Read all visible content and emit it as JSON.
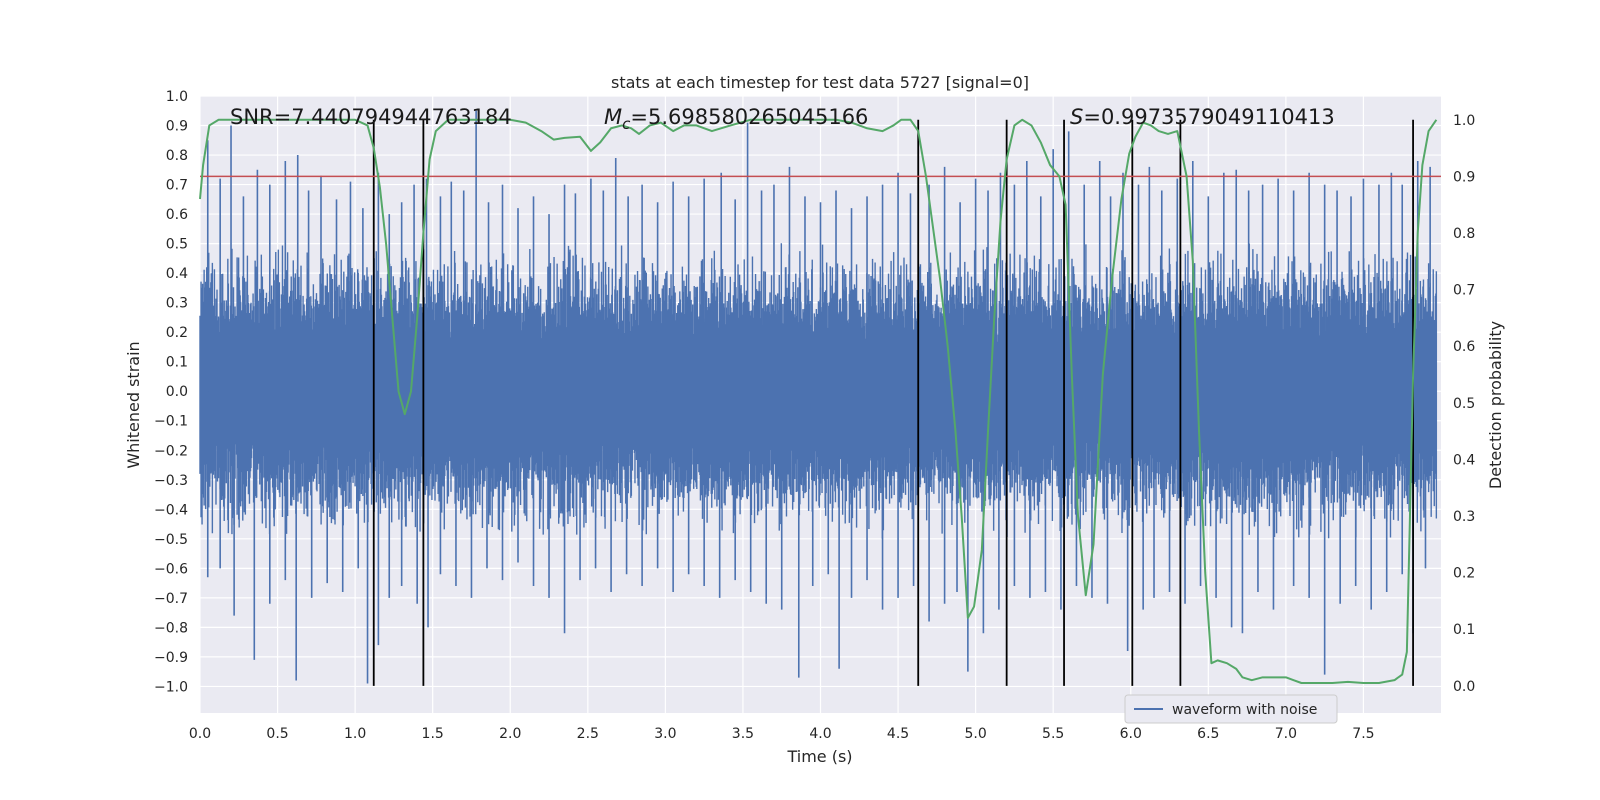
{
  "chart_data": {
    "type": "line",
    "title": "stats at each timestep for test data 5727 [signal=0]",
    "xlabel": "Time (s)",
    "ylabel": "Whitened strain",
    "y2label": "Detection probability",
    "xlim": [
      0.0,
      8.0
    ],
    "ylim": [
      -1.09,
      1.0
    ],
    "y2lim": [
      -0.048,
      1.042
    ],
    "xticks": [
      "0.0",
      "0.5",
      "1.0",
      "1.5",
      "2.0",
      "2.5",
      "3.0",
      "3.5",
      "4.0",
      "4.5",
      "5.0",
      "5.5",
      "6.0",
      "6.5",
      "7.0",
      "7.5"
    ],
    "yticks": [
      "1.0",
      "0.9",
      "0.8",
      "0.7",
      "0.6",
      "0.5",
      "0.4",
      "0.3",
      "0.2",
      "0.1",
      "0.0",
      "−0.1",
      "−0.2",
      "−0.3",
      "−0.4",
      "−0.5",
      "−0.6",
      "−0.7",
      "−0.8",
      "−0.9",
      "−1.0"
    ],
    "y2ticks": [
      "1.0",
      "0.9",
      "0.8",
      "0.7",
      "0.6",
      "0.5",
      "0.4",
      "0.3",
      "0.2",
      "0.1",
      "0.0"
    ],
    "annotations": {
      "snr": "SNR=7.440794944763184",
      "mc_symbol": "M",
      "mc_sub": "c",
      "mc_value": "=5.698580265045166",
      "s_symbol": "S",
      "s_value": "=0.9973579049110413"
    },
    "threshold": 0.9,
    "vertical_lines": [
      1.12,
      1.44,
      4.63,
      5.2,
      5.57,
      6.01,
      6.32,
      7.82
    ],
    "series": [
      {
        "name": "waveform with noise",
        "color": "#4c72b0",
        "core_amplitude": 0.35,
        "peaks_high": [
          [
            0.05,
            0.85
          ],
          [
            0.13,
            0.72
          ],
          [
            0.2,
            0.9
          ],
          [
            0.28,
            0.66
          ],
          [
            0.37,
            0.75
          ],
          [
            0.45,
            0.7
          ],
          [
            0.55,
            0.78
          ],
          [
            0.63,
            0.8
          ],
          [
            0.7,
            0.68
          ],
          [
            0.78,
            0.73
          ],
          [
            0.88,
            0.65
          ],
          [
            0.97,
            0.71
          ],
          [
            1.05,
            0.62
          ],
          [
            1.15,
            0.74
          ],
          [
            1.22,
            0.6
          ],
          [
            1.3,
            0.64
          ],
          [
            1.38,
            0.7
          ],
          [
            1.46,
            0.72
          ],
          [
            1.55,
            0.66
          ],
          [
            1.62,
            0.71
          ],
          [
            1.7,
            0.68
          ],
          [
            1.78,
            0.95
          ],
          [
            1.86,
            0.64
          ],
          [
            1.95,
            0.7
          ],
          [
            2.05,
            0.62
          ],
          [
            2.15,
            0.66
          ],
          [
            2.25,
            0.6
          ],
          [
            2.35,
            0.7
          ],
          [
            2.42,
            0.67
          ],
          [
            2.52,
            0.72
          ],
          [
            2.6,
            0.68
          ],
          [
            2.68,
            0.79
          ],
          [
            2.76,
            0.66
          ],
          [
            2.85,
            0.7
          ],
          [
            2.95,
            0.64
          ],
          [
            3.05,
            0.71
          ],
          [
            3.15,
            0.66
          ],
          [
            3.25,
            0.72
          ],
          [
            3.36,
            0.74
          ],
          [
            3.45,
            0.65
          ],
          [
            3.53,
            0.91
          ],
          [
            3.62,
            0.68
          ],
          [
            3.7,
            0.7
          ],
          [
            3.8,
            0.76
          ],
          [
            3.9,
            0.66
          ],
          [
            4.0,
            0.64
          ],
          [
            4.1,
            0.68
          ],
          [
            4.2,
            0.62
          ],
          [
            4.3,
            0.66
          ],
          [
            4.4,
            0.7
          ],
          [
            4.5,
            0.74
          ],
          [
            4.58,
            0.67
          ],
          [
            4.7,
            0.7
          ],
          [
            4.8,
            0.76
          ],
          [
            4.9,
            0.64
          ],
          [
            5.0,
            0.72
          ],
          [
            5.08,
            0.68
          ],
          [
            5.16,
            0.74
          ],
          [
            5.25,
            0.7
          ],
          [
            5.33,
            0.78
          ],
          [
            5.42,
            0.66
          ],
          [
            5.5,
            0.82
          ],
          [
            5.6,
            0.88
          ],
          [
            5.7,
            0.7
          ],
          [
            5.8,
            0.78
          ],
          [
            5.87,
            0.66
          ],
          [
            5.95,
            0.74
          ],
          [
            6.05,
            0.7
          ],
          [
            6.12,
            0.76
          ],
          [
            6.2,
            0.68
          ],
          [
            6.3,
            0.72
          ],
          [
            6.4,
            0.78
          ],
          [
            6.5,
            0.66
          ],
          [
            6.6,
            0.74
          ],
          [
            6.68,
            0.75
          ],
          [
            6.76,
            0.68
          ],
          [
            6.85,
            0.7
          ],
          [
            6.95,
            0.72
          ],
          [
            7.05,
            0.68
          ],
          [
            7.15,
            0.74
          ],
          [
            7.25,
            0.7
          ],
          [
            7.33,
            0.68
          ],
          [
            7.42,
            0.66
          ],
          [
            7.5,
            0.72
          ],
          [
            7.6,
            0.7
          ],
          [
            7.68,
            0.74
          ],
          [
            7.75,
            0.7
          ],
          [
            7.85,
            0.78
          ],
          [
            7.93,
            0.76
          ]
        ],
        "peaks_low": [
          [
            0.05,
            -0.63
          ],
          [
            0.13,
            -0.6
          ],
          [
            0.22,
            -0.76
          ],
          [
            0.35,
            -0.91
          ],
          [
            0.45,
            -0.72
          ],
          [
            0.55,
            -0.64
          ],
          [
            0.62,
            -0.98
          ],
          [
            0.72,
            -0.7
          ],
          [
            0.82,
            -0.65
          ],
          [
            0.92,
            -0.68
          ],
          [
            1.02,
            -0.6
          ],
          [
            1.08,
            -0.99
          ],
          [
            1.15,
            -0.86
          ],
          [
            1.22,
            -0.7
          ],
          [
            1.3,
            -0.66
          ],
          [
            1.4,
            -0.72
          ],
          [
            1.47,
            -0.8
          ],
          [
            1.55,
            -0.62
          ],
          [
            1.65,
            -0.66
          ],
          [
            1.75,
            -0.7
          ],
          [
            1.85,
            -0.6
          ],
          [
            1.95,
            -0.64
          ],
          [
            2.05,
            -0.58
          ],
          [
            2.15,
            -0.66
          ],
          [
            2.25,
            -0.7
          ],
          [
            2.35,
            -0.82
          ],
          [
            2.45,
            -0.64
          ],
          [
            2.55,
            -0.6
          ],
          [
            2.65,
            -0.68
          ],
          [
            2.75,
            -0.62
          ],
          [
            2.85,
            -0.66
          ],
          [
            2.95,
            -0.6
          ],
          [
            3.05,
            -0.68
          ],
          [
            3.15,
            -0.62
          ],
          [
            3.25,
            -0.66
          ],
          [
            3.35,
            -0.7
          ],
          [
            3.45,
            -0.64
          ],
          [
            3.55,
            -0.68
          ],
          [
            3.65,
            -0.72
          ],
          [
            3.75,
            -0.74
          ],
          [
            3.86,
            -0.97
          ],
          [
            3.95,
            -0.66
          ],
          [
            4.05,
            -0.62
          ],
          [
            4.12,
            -0.94
          ],
          [
            4.2,
            -0.7
          ],
          [
            4.3,
            -0.64
          ],
          [
            4.4,
            -0.74
          ],
          [
            4.5,
            -0.7
          ],
          [
            4.6,
            -0.66
          ],
          [
            4.7,
            -0.78
          ],
          [
            4.8,
            -0.72
          ],
          [
            4.88,
            -0.68
          ],
          [
            4.95,
            -0.95
          ],
          [
            5.05,
            -0.82
          ],
          [
            5.15,
            -0.74
          ],
          [
            5.25,
            -0.66
          ],
          [
            5.35,
            -0.7
          ],
          [
            5.45,
            -0.68
          ],
          [
            5.55,
            -0.74
          ],
          [
            5.65,
            -0.66
          ],
          [
            5.75,
            -0.7
          ],
          [
            5.85,
            -0.72
          ],
          [
            5.98,
            -0.88
          ],
          [
            6.08,
            -0.74
          ],
          [
            6.15,
            -0.7
          ],
          [
            6.25,
            -0.68
          ],
          [
            6.35,
            -0.72
          ],
          [
            6.45,
            -0.66
          ],
          [
            6.55,
            -0.7
          ],
          [
            6.65,
            -0.8
          ],
          [
            6.72,
            -0.82
          ],
          [
            6.82,
            -0.68
          ],
          [
            6.92,
            -0.74
          ],
          [
            7.05,
            -0.66
          ],
          [
            7.15,
            -0.7
          ],
          [
            7.25,
            -0.96
          ],
          [
            7.35,
            -0.72
          ],
          [
            7.45,
            -0.66
          ],
          [
            7.55,
            -0.74
          ],
          [
            7.65,
            -0.68
          ],
          [
            7.75,
            -0.62
          ],
          [
            7.82,
            -0.82
          ],
          [
            7.9,
            -0.6
          ]
        ]
      },
      {
        "name": "",
        "color": "#55a868",
        "axis": "right",
        "points": [
          [
            0.0,
            0.86
          ],
          [
            0.02,
            0.92
          ],
          [
            0.06,
            0.99
          ],
          [
            0.12,
            1.0
          ],
          [
            0.2,
            1.0
          ],
          [
            0.3,
            1.0
          ],
          [
            0.5,
            1.0
          ],
          [
            0.7,
            1.0
          ],
          [
            0.9,
            1.0
          ],
          [
            1.0,
            1.0
          ],
          [
            1.08,
            0.99
          ],
          [
            1.12,
            0.95
          ],
          [
            1.16,
            0.88
          ],
          [
            1.2,
            0.78
          ],
          [
            1.24,
            0.65
          ],
          [
            1.28,
            0.52
          ],
          [
            1.32,
            0.48
          ],
          [
            1.36,
            0.52
          ],
          [
            1.4,
            0.65
          ],
          [
            1.44,
            0.8
          ],
          [
            1.48,
            0.93
          ],
          [
            1.52,
            0.98
          ],
          [
            1.6,
            1.0
          ],
          [
            1.8,
            1.0
          ],
          [
            2.0,
            1.0
          ],
          [
            2.1,
            0.995
          ],
          [
            2.2,
            0.98
          ],
          [
            2.28,
            0.965
          ],
          [
            2.35,
            0.968
          ],
          [
            2.45,
            0.97
          ],
          [
            2.52,
            0.945
          ],
          [
            2.58,
            0.96
          ],
          [
            2.65,
            0.985
          ],
          [
            2.72,
            0.99
          ],
          [
            2.78,
            0.985
          ],
          [
            2.83,
            0.975
          ],
          [
            2.9,
            0.99
          ],
          [
            2.97,
            0.995
          ],
          [
            3.05,
            0.98
          ],
          [
            3.12,
            0.99
          ],
          [
            3.2,
            0.99
          ],
          [
            3.3,
            0.98
          ],
          [
            3.42,
            0.99
          ],
          [
            3.55,
            1.0
          ],
          [
            3.7,
            1.0
          ],
          [
            3.9,
            1.0
          ],
          [
            4.1,
            1.0
          ],
          [
            4.2,
            0.995
          ],
          [
            4.3,
            0.985
          ],
          [
            4.4,
            0.98
          ],
          [
            4.47,
            0.99
          ],
          [
            4.52,
            1.0
          ],
          [
            4.58,
            1.0
          ],
          [
            4.63,
            0.98
          ],
          [
            4.68,
            0.9
          ],
          [
            4.72,
            0.82
          ],
          [
            4.77,
            0.72
          ],
          [
            4.82,
            0.6
          ],
          [
            4.87,
            0.45
          ],
          [
            4.91,
            0.3
          ],
          [
            4.95,
            0.12
          ],
          [
            4.99,
            0.14
          ],
          [
            5.04,
            0.24
          ],
          [
            5.08,
            0.45
          ],
          [
            5.12,
            0.65
          ],
          [
            5.16,
            0.82
          ],
          [
            5.2,
            0.93
          ],
          [
            5.25,
            0.99
          ],
          [
            5.3,
            1.0
          ],
          [
            5.36,
            0.99
          ],
          [
            5.42,
            0.96
          ],
          [
            5.48,
            0.92
          ],
          [
            5.54,
            0.9
          ],
          [
            5.58,
            0.85
          ],
          [
            5.62,
            0.55
          ],
          [
            5.66,
            0.3
          ],
          [
            5.71,
            0.16
          ],
          [
            5.76,
            0.25
          ],
          [
            5.82,
            0.55
          ],
          [
            5.88,
            0.72
          ],
          [
            5.94,
            0.86
          ],
          [
            5.99,
            0.94
          ],
          [
            6.03,
            0.97
          ],
          [
            6.08,
            0.995
          ],
          [
            6.13,
            0.99
          ],
          [
            6.18,
            0.98
          ],
          [
            6.24,
            0.975
          ],
          [
            6.3,
            0.98
          ],
          [
            6.36,
            0.9
          ],
          [
            6.4,
            0.75
          ],
          [
            6.44,
            0.45
          ],
          [
            6.48,
            0.2
          ],
          [
            6.52,
            0.04
          ],
          [
            6.56,
            0.045
          ],
          [
            6.62,
            0.04
          ],
          [
            6.68,
            0.03
          ],
          [
            6.72,
            0.015
          ],
          [
            6.78,
            0.01
          ],
          [
            6.85,
            0.015
          ],
          [
            6.92,
            0.015
          ],
          [
            7.0,
            0.015
          ],
          [
            7.05,
            0.01
          ],
          [
            7.1,
            0.005
          ],
          [
            7.2,
            0.005
          ],
          [
            7.3,
            0.005
          ],
          [
            7.4,
            0.007
          ],
          [
            7.5,
            0.005
          ],
          [
            7.6,
            0.005
          ],
          [
            7.7,
            0.01
          ],
          [
            7.75,
            0.02
          ],
          [
            7.78,
            0.06
          ],
          [
            7.8,
            0.3
          ],
          [
            7.82,
            0.55
          ],
          [
            7.85,
            0.8
          ],
          [
            7.88,
            0.92
          ],
          [
            7.92,
            0.98
          ],
          [
            7.97,
            1.0
          ]
        ]
      }
    ],
    "legend": {
      "position": "lower-right",
      "entry": "waveform with noise"
    },
    "grid": true
  }
}
